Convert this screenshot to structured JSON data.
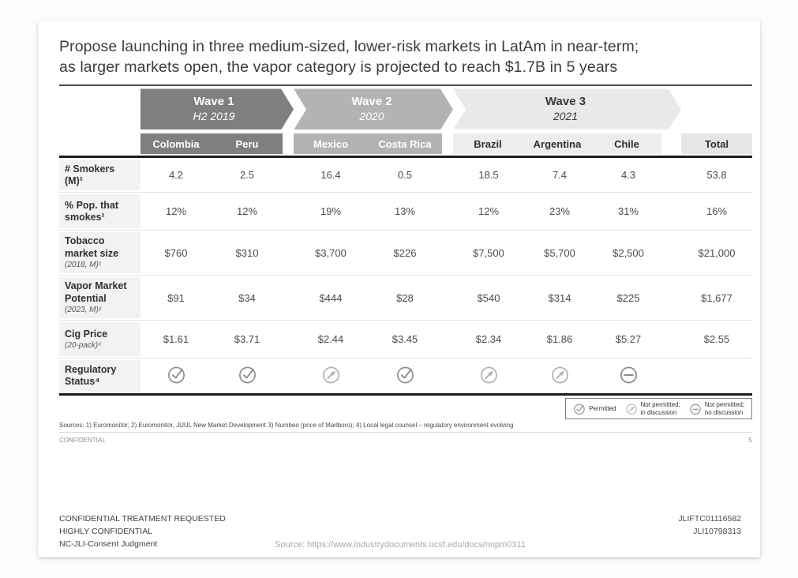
{
  "title": {
    "line1": "Propose launching in three medium-sized, lower-risk markets in LatAm in near-term;",
    "line2": "as larger markets open, the vapor category is projected to reach $1.7B in 5 years"
  },
  "waves": [
    {
      "label": "Wave 1",
      "period": "H2 2019",
      "color": "#7f7f7f"
    },
    {
      "label": "Wave 2",
      "period": "2020",
      "color": "#b3b3b3"
    },
    {
      "label": "Wave 3",
      "period": "2021",
      "color": "#e9e9e9"
    }
  ],
  "columns": {
    "countries": [
      "Colombia",
      "Peru",
      "Mexico",
      "Costa Rica",
      "Brazil",
      "Argentina",
      "Chile"
    ],
    "total_label": "Total"
  },
  "table": {
    "rows": [
      {
        "bold_lines": [
          "# Smokers",
          "(M)¹"
        ],
        "values": [
          "4.2",
          "2.5",
          "16.4",
          "0.5",
          "18.5",
          "7.4",
          "4.3"
        ],
        "total": "53.8"
      },
      {
        "bold_lines": [
          "% Pop. that",
          "smokes¹"
        ],
        "values": [
          "12%",
          "12%",
          "19%",
          "13%",
          "12%",
          "23%",
          "31%"
        ],
        "total": "16%"
      },
      {
        "bold_lines": [
          "Tobacco",
          "market size"
        ],
        "italic_line": "(2018, M)¹",
        "values": [
          "$760",
          "$310",
          "$3,700",
          "$226",
          "$7,500",
          "$5,700",
          "$2,500"
        ],
        "total": "$21,000"
      },
      {
        "bold_lines": [
          "Vapor Market",
          "Potential"
        ],
        "italic_line": "(2023, M)²",
        "values": [
          "$91",
          "$34",
          "$444",
          "$28",
          "$540",
          "$314",
          "$225"
        ],
        "total": "$1,677"
      },
      {
        "bold_lines": [
          "Cig Price"
        ],
        "italic_line": "(20-pack)³",
        "values": [
          "$1.61",
          "$3.71",
          "$2.44",
          "$3.45",
          "$2.34",
          "$1.86",
          "$5.27"
        ],
        "total": "$2.55"
      },
      {
        "bold_lines": [
          "Regulatory",
          "Status⁴"
        ],
        "icons": [
          "permitted",
          "permitted",
          "in-discussion",
          "permitted",
          "in-discussion",
          "in-discussion",
          "not-permitted"
        ]
      }
    ]
  },
  "legend": {
    "items": [
      {
        "icon": "permitted",
        "lines": [
          "Permitted"
        ]
      },
      {
        "icon": "in-discussion",
        "lines": [
          "Not permitted;",
          "in discussion"
        ]
      },
      {
        "icon": "not-permitted",
        "lines": [
          "Not permitted;",
          "no discussion"
        ]
      }
    ]
  },
  "sources": "Sources: 1) Euromonitor; 2) Euromonitor, JUUL New Market Development 3) Numbeo (price of Marlboro); 4) Local legal counsel – regulatory environment evolving",
  "confidential_label": "CONFIDENTIAL",
  "page_number": "5",
  "footer": {
    "left_lines": [
      "CONFIDENTIAL TREATMENT REQUESTED",
      "HIGHLY CONFIDENTIAL",
      "NC-JLI-Consent Judgment"
    ],
    "right_lines": [
      "JLIFTC01116582",
      "JLI10798313"
    ],
    "source_line": "Source:  https://www.industrydocuments.ucsf.edu/docs/nnpm0311"
  },
  "icon_legend_names": [
    "check-circle-icon",
    "arrow-circle-icon",
    "minus-circle-icon"
  ],
  "colors": {
    "wave1": "#7f7f7f",
    "wave2": "#b3b3b3",
    "wave3": "#e9e9e9",
    "row_label_bg": "#f2f2f2",
    "rule_dark": "#1c1c1c",
    "icon_dark_gray": "#8f8f8f",
    "icon_light_gray": "#b2b2b2"
  }
}
